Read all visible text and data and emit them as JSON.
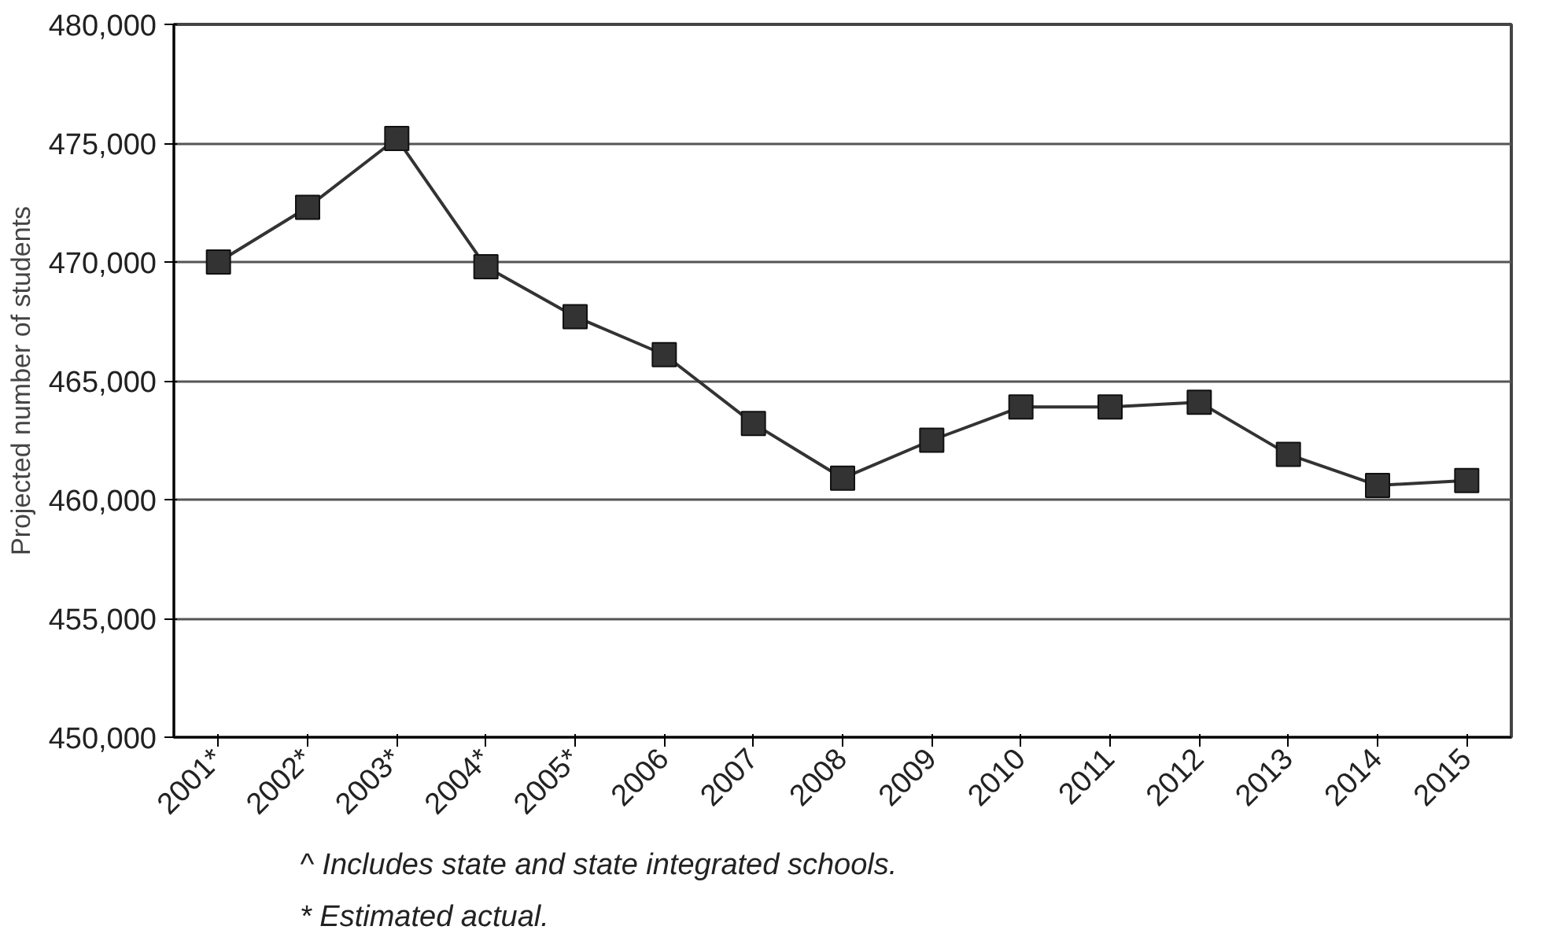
{
  "chart_data": {
    "type": "line",
    "ylabel": "Projected number of students",
    "categories": [
      "2001*",
      "2002*",
      "2003*",
      "2004*",
      "2005*",
      "2006",
      "2007",
      "2008",
      "2009",
      "2010",
      "2011",
      "2012",
      "2013",
      "2014",
      "2015"
    ],
    "series": [
      {
        "color": "#333333",
        "values": [
          470000,
          472300,
          475200,
          469800,
          467700,
          466100,
          463200,
          460900,
          462500,
          463900,
          463900,
          464100,
          461900,
          460600,
          460800
        ]
      }
    ],
    "ylim": [
      450000,
      480000
    ],
    "yticks": [
      {
        "value": 450000,
        "label": "450,000"
      },
      {
        "value": 455000,
        "label": "455,000"
      },
      {
        "value": 460000,
        "label": "460,000"
      },
      {
        "value": 465000,
        "label": "465,000"
      },
      {
        "value": 470000,
        "label": "470,000"
      },
      {
        "value": 475000,
        "label": "475,000"
      },
      {
        "value": 480000,
        "label": "480,000"
      }
    ],
    "grid": "y",
    "marker": "square",
    "line_style": "solid",
    "annotations": [
      "^ Includes state and state integrated schools.",
      "* Estimated actual."
    ]
  }
}
